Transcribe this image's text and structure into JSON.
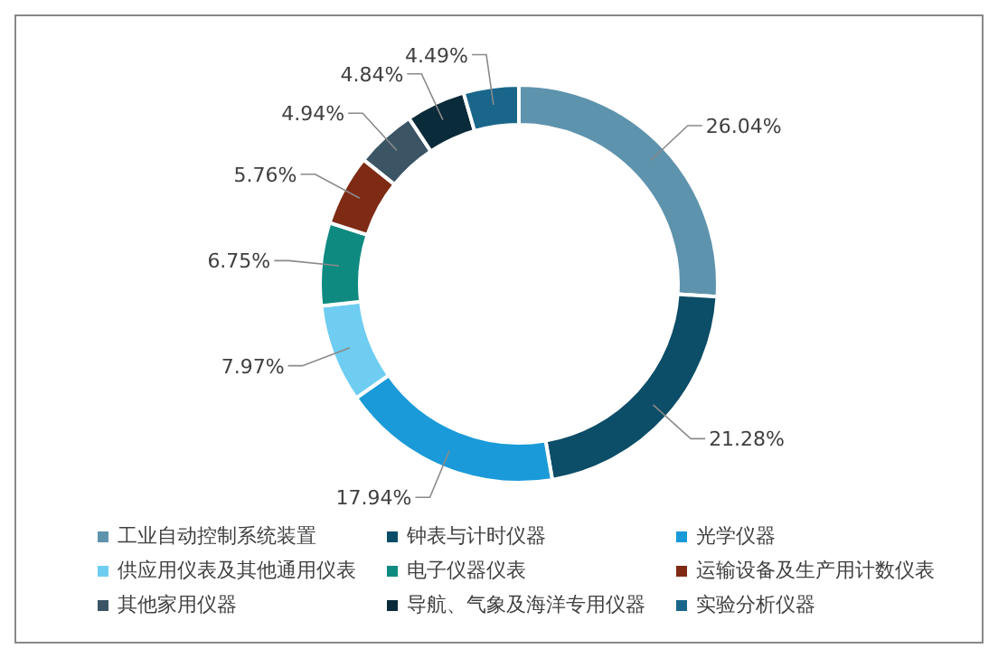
{
  "chart_data": {
    "type": "donut",
    "categories": [
      "工业自动控制系统装置",
      "钟表与计时仪器",
      "光学仪器",
      "供应用仪表及其他通用仪表",
      "电子仪器仪表",
      "运输设备及生产用计数仪表",
      "其他家用仪器",
      "导航、气象及海洋专用仪器",
      "实验分析仪器"
    ],
    "values": [
      26.04,
      21.28,
      17.94,
      7.97,
      6.75,
      5.76,
      4.94,
      4.84,
      4.49
    ],
    "value_labels": [
      "26.04%",
      "21.28%",
      "17.94%",
      "7.97%",
      "6.75%",
      "5.76%",
      "4.94%",
      "4.84%",
      "4.49%"
    ],
    "colors": [
      "#5e93ad",
      "#0c4d68",
      "#1a9ad8",
      "#6fcdf2",
      "#0f8a80",
      "#7e2a14",
      "#3b5565",
      "#0a2b3a",
      "#19668a"
    ],
    "legend": "bottom"
  }
}
